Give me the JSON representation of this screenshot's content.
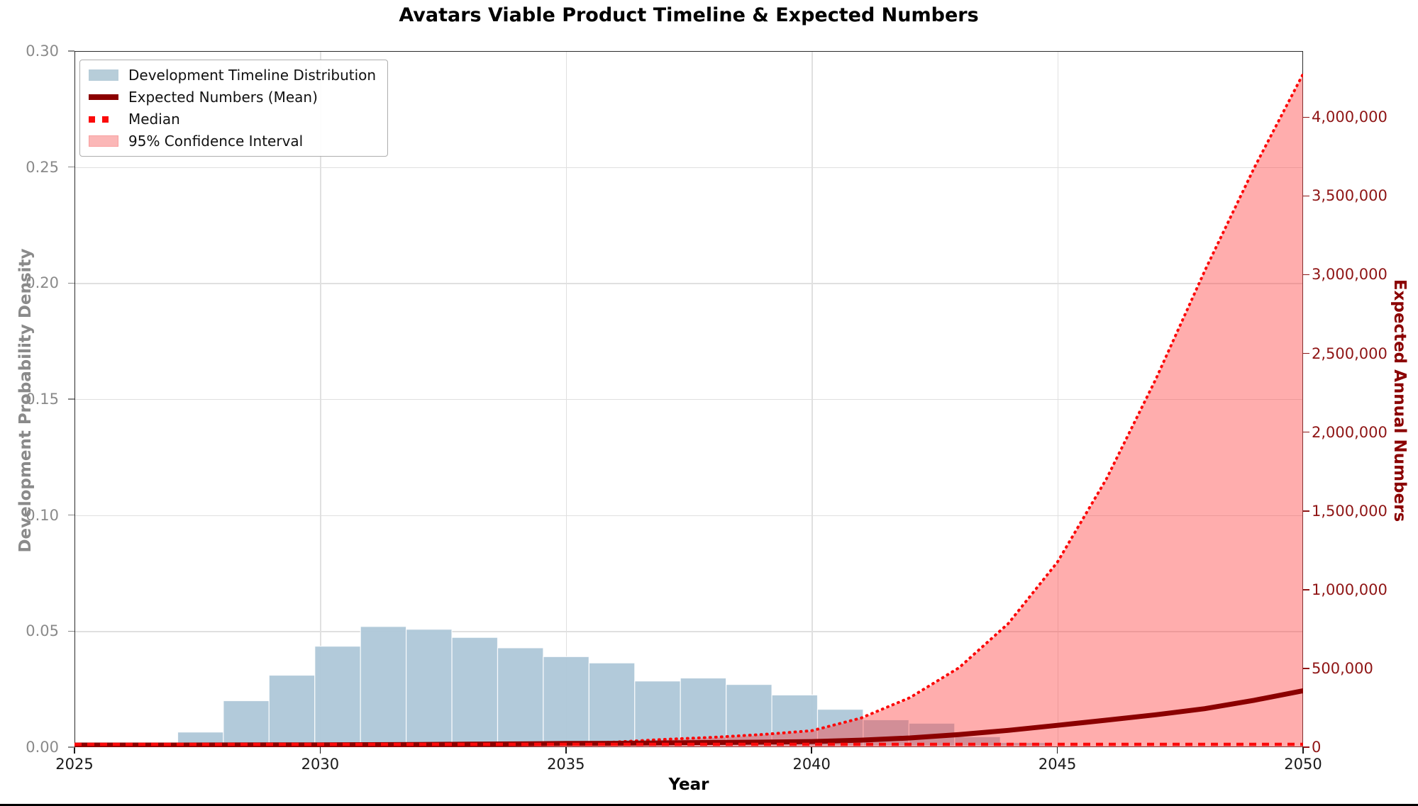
{
  "title": "Avatars Viable Product Timeline & Expected Numbers",
  "axes": {
    "x": {
      "label": "Year",
      "min": 2025,
      "max": 2050,
      "ticks": [
        2025,
        2030,
        2035,
        2040,
        2045,
        2050
      ]
    },
    "y_left": {
      "label": "Development Probability Density",
      "min": 0,
      "max": 0.3,
      "tick_labels": [
        "0.00",
        "0.05",
        "0.10",
        "0.15",
        "0.20",
        "0.25",
        "0.30"
      ],
      "tick_values": [
        0,
        0.05,
        0.1,
        0.15,
        0.2,
        0.25,
        0.3
      ],
      "color": "#8a8a8a"
    },
    "y_right": {
      "label": "Expected Annual Numbers",
      "min": 0,
      "max": 4420000,
      "tick_labels": [
        "0",
        "500,000",
        "1,000,000",
        "1,500,000",
        "2,000,000",
        "2,500,000",
        "3,000,000",
        "3,500,000",
        "4,000,000"
      ],
      "tick_values": [
        0,
        500000,
        1000000,
        1500000,
        2000000,
        2500000,
        3000000,
        3500000,
        4000000
      ],
      "color": "#8f1515"
    }
  },
  "legend": {
    "items": [
      {
        "label": "Development Timeline Distribution",
        "swatch": "histogram",
        "color": "#b7cdd9"
      },
      {
        "label": "Expected Numbers (Mean)",
        "swatch": "thick-line",
        "color": "#8b0000"
      },
      {
        "label": "Median",
        "swatch": "dotted-line",
        "color": "#fb0a0a"
      },
      {
        "label": "95% Confidence Interval",
        "swatch": "band",
        "color": "#fbb7b7"
      }
    ]
  },
  "chart_data": {
    "type": "composite",
    "title": "Avatars Viable Product Timeline & Expected Numbers",
    "xlabel": "Year",
    "xlim": [
      2025,
      2050
    ],
    "ylim_left": [
      0,
      0.3
    ],
    "ylim_right": [
      0,
      4420000
    ],
    "grid": true,
    "legend_position": "upper-left",
    "series": [
      {
        "name": "Development Timeline Distribution",
        "type": "histogram",
        "axis": "left",
        "color": "rgba(174,199,216,0.95)",
        "bin_width": 0.93,
        "bin_starts": [
          2027.1,
          2028.03,
          2028.96,
          2029.89,
          2030.82,
          2031.75,
          2032.68,
          2033.61,
          2034.54,
          2035.47,
          2036.4,
          2037.33,
          2038.26,
          2039.19,
          2040.12,
          2041.05,
          2041.98,
          2042.91,
          2043.84
        ],
        "densities": [
          0.0065,
          0.02,
          0.031,
          0.0435,
          0.052,
          0.0508,
          0.0473,
          0.0428,
          0.039,
          0.0363,
          0.0285,
          0.0298,
          0.027,
          0.0225,
          0.0163,
          0.0118,
          0.0103,
          0.0045,
          0.002
        ]
      },
      {
        "name": "Expected Numbers (Mean)",
        "type": "line",
        "axis": "right",
        "color": "#8b0000",
        "x": [
          2025,
          2026,
          2027,
          2028,
          2029,
          2030,
          2031,
          2032,
          2033,
          2034,
          2035,
          2036,
          2037,
          2038,
          2039,
          2040,
          2041,
          2042,
          2043,
          2044,
          2045,
          2046,
          2047,
          2048,
          2049,
          2050
        ],
        "y": [
          0,
          0,
          100,
          300,
          700,
          1300,
          2200,
          3500,
          5200,
          7300,
          9800,
          11000,
          13500,
          16000,
          18500,
          22000,
          31000,
          45000,
          66000,
          93000,
          125000,
          158000,
          192000,
          231000,
          284000,
          345000
        ]
      },
      {
        "name": "Median",
        "type": "line",
        "style": "dashed",
        "axis": "right",
        "color": "#fb0a0a",
        "x": [
          2025,
          2050
        ],
        "y": [
          0,
          0
        ]
      },
      {
        "name": "95% Confidence Interval",
        "type": "band",
        "axis": "right",
        "fill_color": "rgba(255,60,60,0.42)",
        "edge_style": "dotted",
        "edge_color": "#fb0a0a",
        "x": [
          2025,
          2026,
          2027,
          2028,
          2029,
          2030,
          2031,
          2032,
          2033,
          2034,
          2035,
          2036,
          2037,
          2038,
          2039,
          2040,
          2041,
          2042,
          2043,
          2044,
          2045,
          2046,
          2047,
          2048,
          2049,
          2050
        ],
        "upper": [
          0,
          0,
          200,
          500,
          1000,
          2000,
          3500,
          5500,
          8000,
          12000,
          18000,
          28000,
          45000,
          58000,
          76000,
          100000,
          180000,
          310000,
          500000,
          780000,
          1170000,
          1700000,
          2330000,
          3020000,
          3670000,
          4270000
        ],
        "lower": [
          0,
          0,
          0,
          0,
          0,
          0,
          0,
          0,
          0,
          0,
          0,
          0,
          0,
          0,
          0,
          0,
          0,
          0,
          0,
          0,
          0,
          0,
          0,
          0,
          0,
          0
        ]
      }
    ]
  }
}
